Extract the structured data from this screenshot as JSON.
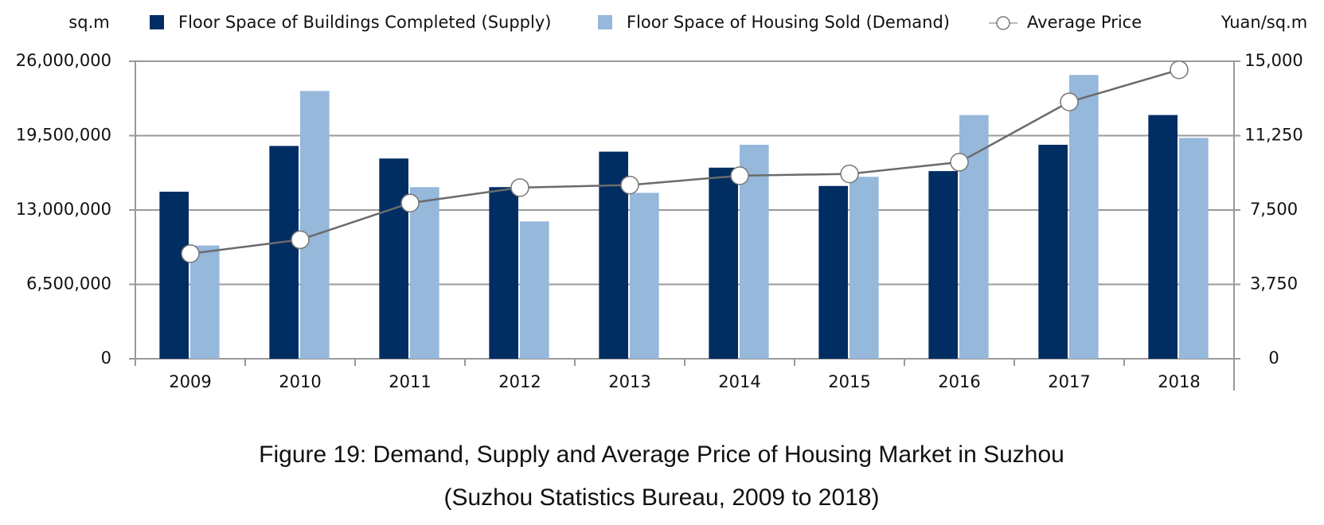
{
  "chart_data": {
    "type": "bar",
    "title": "Figure 19: Demand, Supply and Average Price of Housing Market in Suzhou",
    "subtitle": "(Suzhou Statistics Bureau, 2009 to 2018)",
    "y_label": "sq.m",
    "y2_label": "Yuan/sq.m",
    "categories": [
      "2009",
      "2010",
      "2011",
      "2012",
      "2013",
      "2014",
      "2015",
      "2016",
      "2017",
      "2018"
    ],
    "series": [
      {
        "name": "Floor Space of Buildings Completed (Supply)",
        "color": "#002d62",
        "type": "bar",
        "values": [
          14600000,
          18600000,
          17500000,
          15000000,
          18100000,
          16700000,
          15100000,
          16400000,
          18700000,
          21300000
        ]
      },
      {
        "name": "Floor Space of Housing Sold (Demand)",
        "color": "#95b8db",
        "type": "bar",
        "values": [
          9900000,
          23400000,
          15000000,
          12000000,
          14500000,
          18700000,
          15900000,
          21300000,
          24800000,
          19300000
        ]
      },
      {
        "name": "Average Price",
        "color": "#6b6b6b",
        "type": "line",
        "axis": "y2",
        "values": [
          5300,
          6000,
          7850,
          8630,
          8760,
          9230,
          9320,
          9910,
          12950,
          14570
        ]
      }
    ],
    "ylim": [
      0,
      26000000
    ],
    "yticks": [
      0,
      {
        "value": 6500000,
        "label": "6,500,000"
      },
      {
        "value": 13000000,
        "label": "13,000,000"
      },
      {
        "value": 19500000,
        "label": "19,500,000"
      },
      {
        "value": 26000000,
        "label": "26,000,000"
      }
    ],
    "y2lim": [
      0,
      15000
    ],
    "y2ticks": [
      0,
      {
        "value": 3750,
        "label": "3,750"
      },
      {
        "value": 7500,
        "label": "7,500"
      },
      {
        "value": 11250,
        "label": "11,250"
      },
      {
        "value": 15000,
        "label": "15,000"
      }
    ],
    "grid": true
  }
}
